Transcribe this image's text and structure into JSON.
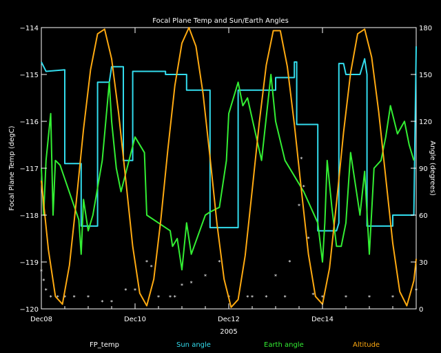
{
  "chart_data": {
    "type": "line",
    "title": "Focal Plane Temp and Sun/Earth Angles",
    "xlabel": "2005",
    "ylabel_left": "Focal Plane Temp (degC)",
    "ylabel_right": "Angle (degrees)",
    "x_range_days": [
      8,
      16
    ],
    "ylim_left": [
      -120,
      -114
    ],
    "ylim_right": [
      0,
      180
    ],
    "x_ticks": [
      "Dec08",
      "Dec10",
      "Dec12",
      "Dec14"
    ],
    "x_tick_days": [
      8,
      10,
      12,
      14
    ],
    "y_left_ticks": [
      -120,
      -119,
      -118,
      -117,
      -116,
      -115,
      -114
    ],
    "y_left_tick_labels": [
      "−120",
      "−119",
      "−118",
      "−117",
      "−116",
      "−115",
      "−114"
    ],
    "y_right_ticks": [
      0,
      30,
      60,
      90,
      120,
      150,
      180
    ],
    "grid": false,
    "legend_position": "bottom",
    "series": [
      {
        "name": "FP_temp",
        "axis": "left",
        "color": "#ffffff",
        "style": "markers",
        "x": [
          8.0,
          8.05,
          8.1,
          8.2,
          8.35,
          8.5,
          8.7,
          9.0,
          9.3,
          9.5,
          9.8,
          10.0,
          10.25,
          10.35,
          10.5,
          10.75,
          10.85,
          11.0,
          11.2,
          11.5,
          11.8,
          12.0,
          12.4,
          12.5,
          12.8,
          13.0,
          13.2,
          13.3,
          13.5,
          13.55,
          13.6,
          13.7,
          13.8,
          14.0,
          14.5,
          15.0,
          15.5,
          16.0
        ],
        "y": [
          -119.2,
          -119.4,
          -119.6,
          -119.75,
          -119.75,
          -119.75,
          -119.75,
          -119.75,
          -119.85,
          -119.85,
          -119.6,
          -119.6,
          -119.0,
          -119.1,
          -119.75,
          -119.75,
          -119.75,
          -119.5,
          -119.45,
          -119.3,
          -119.0,
          -119.75,
          -119.75,
          -119.75,
          -119.75,
          -119.3,
          -119.75,
          -119.0,
          -117.8,
          -116.8,
          -117.4,
          -118.5,
          -119.7,
          -119.75,
          -119.75,
          -119.75,
          -119.75,
          -119.6
        ]
      },
      {
        "name": "Sun angle",
        "axis": "right",
        "color": "#33ddee",
        "style": "line",
        "x": [
          8.0,
          8.05,
          8.1,
          8.5,
          8.5,
          8.85,
          8.85,
          9.2,
          9.2,
          9.45,
          9.5,
          9.75,
          9.75,
          9.95,
          9.95,
          10.15,
          10.15,
          10.65,
          10.65,
          11.1,
          11.1,
          11.6,
          11.6,
          12.2,
          12.2,
          12.45,
          12.5,
          13.0,
          13.0,
          13.4,
          13.4,
          13.45,
          13.45,
          13.9,
          13.9,
          14.15,
          14.15,
          14.3,
          14.35,
          14.35,
          14.45,
          14.5,
          14.8,
          14.9,
          14.9,
          14.95,
          14.95,
          15.5,
          15.5,
          15.95,
          16.0
        ],
        "y": [
          158,
          155,
          152,
          153,
          93,
          93,
          53,
          53,
          145,
          145,
          155,
          155,
          95,
          95,
          152,
          152,
          152,
          152,
          150,
          150,
          140,
          140,
          52,
          52,
          140,
          140,
          140,
          140,
          148,
          148,
          158,
          158,
          118,
          118,
          50,
          50,
          50,
          50,
          55,
          157,
          157,
          150,
          150,
          160,
          160,
          150,
          53,
          53,
          60,
          60,
          168
        ]
      },
      {
        "name": "Earth angle",
        "axis": "right",
        "color": "#33ee33",
        "style": "line",
        "x": [
          8.0,
          8.05,
          8.1,
          8.15,
          8.2,
          8.25,
          8.3,
          8.4,
          8.8,
          8.85,
          8.9,
          9.0,
          9.1,
          9.3,
          9.45,
          9.5,
          9.6,
          9.7,
          10.0,
          10.2,
          10.25,
          10.5,
          10.75,
          10.8,
          10.9,
          11.0,
          11.1,
          11.2,
          11.5,
          11.6,
          11.8,
          11.95,
          12.0,
          12.2,
          12.3,
          12.4,
          12.7,
          12.9,
          13.0,
          13.2,
          13.4,
          13.6,
          13.9,
          14.0,
          14.05,
          14.1,
          14.2,
          14.3,
          14.4,
          14.5,
          14.6,
          14.8,
          14.9,
          15.0,
          15.1,
          15.25,
          15.35,
          15.45,
          15.6,
          15.75,
          15.85,
          15.95
        ],
        "y": [
          90,
          60,
          95,
          110,
          125,
          60,
          95,
          92,
          57,
          35,
          70,
          50,
          60,
          95,
          145,
          120,
          90,
          75,
          110,
          100,
          60,
          55,
          50,
          40,
          45,
          25,
          55,
          35,
          60,
          62,
          65,
          95,
          125,
          145,
          130,
          135,
          95,
          150,
          120,
          95,
          85,
          75,
          55,
          30,
          55,
          95,
          65,
          40,
          40,
          55,
          100,
          60,
          88,
          35,
          90,
          95,
          110,
          130,
          112,
          120,
          105,
          95
        ]
      },
      {
        "name": "Altitude",
        "axis": "right",
        "color": "#ffaa11",
        "style": "line",
        "formula_note": "",
        "x": [
          8.0,
          8.15,
          8.3,
          8.45,
          8.6,
          8.75,
          8.9,
          9.05,
          9.2,
          9.35,
          9.5,
          9.65,
          9.8,
          9.95,
          10.1,
          10.25,
          10.4,
          10.55,
          10.7,
          10.85,
          11.0,
          11.15,
          11.3,
          11.45,
          11.6,
          11.75,
          11.9,
          12.05,
          12.2,
          12.35,
          12.5,
          12.65,
          12.8,
          12.95,
          13.1,
          13.25,
          13.4,
          13.55,
          13.7,
          13.85,
          14.0,
          14.15,
          14.3,
          14.45,
          14.6,
          14.75,
          14.9,
          15.05,
          15.2,
          15.35,
          15.5,
          15.65,
          15.8,
          15.95,
          16.0
        ],
        "y": [
          82,
          38,
          8,
          3,
          28,
          70,
          115,
          153,
          176,
          179,
          160,
          125,
          83,
          40,
          10,
          2,
          19,
          57,
          102,
          143,
          170,
          180,
          168,
          138,
          97,
          54,
          19,
          1,
          6,
          34,
          76,
          119,
          156,
          178,
          178,
          155,
          118,
          76,
          35,
          8,
          3,
          26,
          68,
          113,
          151,
          176,
          179,
          161,
          126,
          84,
          42,
          11,
          2,
          18,
          32
        ]
      }
    ]
  }
}
